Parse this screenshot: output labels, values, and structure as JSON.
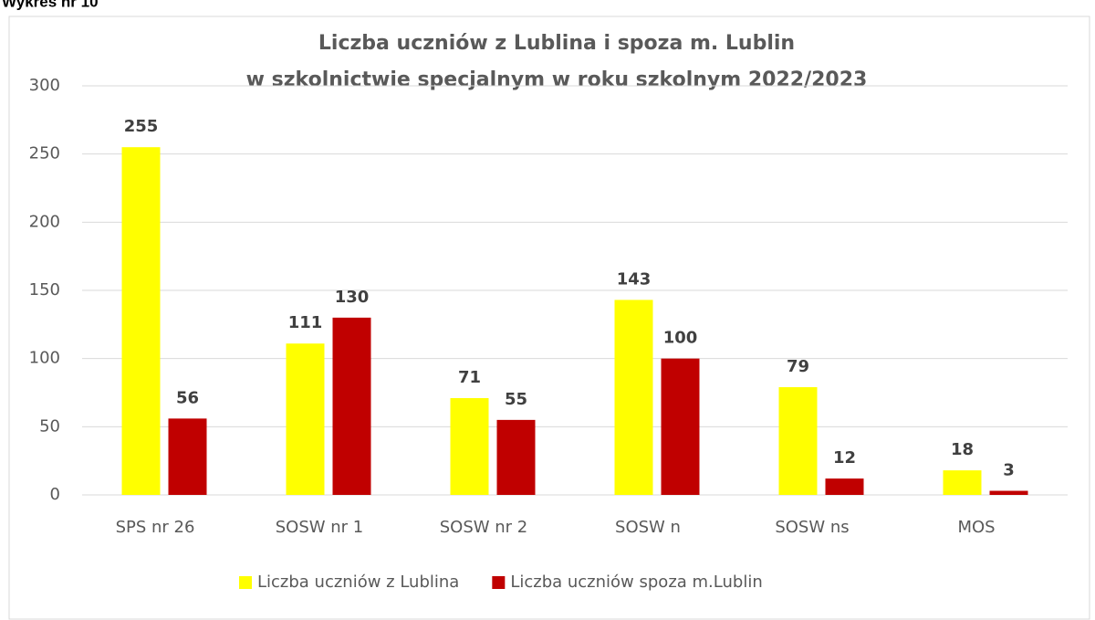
{
  "caption": "Wykres nr 10",
  "chart_data": {
    "type": "bar",
    "title": [
      "Liczba uczniów z Lublina i spoza m. Lublin",
      "w szkolnictwie specjalnym w roku szkolnym 2022/2023"
    ],
    "categories": [
      "SPS nr 26",
      "SOSW nr 1",
      "SOSW nr 2",
      "SOSW n",
      "SOSW ns",
      "MOS"
    ],
    "series": [
      {
        "name": "Liczba uczniów z Lublina",
        "color": "#ffff00",
        "values": [
          255,
          111,
          71,
          143,
          79,
          18
        ]
      },
      {
        "name": "Liczba uczniów spoza m.Lublin",
        "color": "#c00000",
        "values": [
          56,
          130,
          55,
          100,
          12,
          3
        ]
      }
    ],
    "ylim": [
      0,
      300
    ],
    "yticks": [
      0,
      50,
      100,
      150,
      200,
      250,
      300
    ],
    "grid": true,
    "legend": "bottom"
  }
}
